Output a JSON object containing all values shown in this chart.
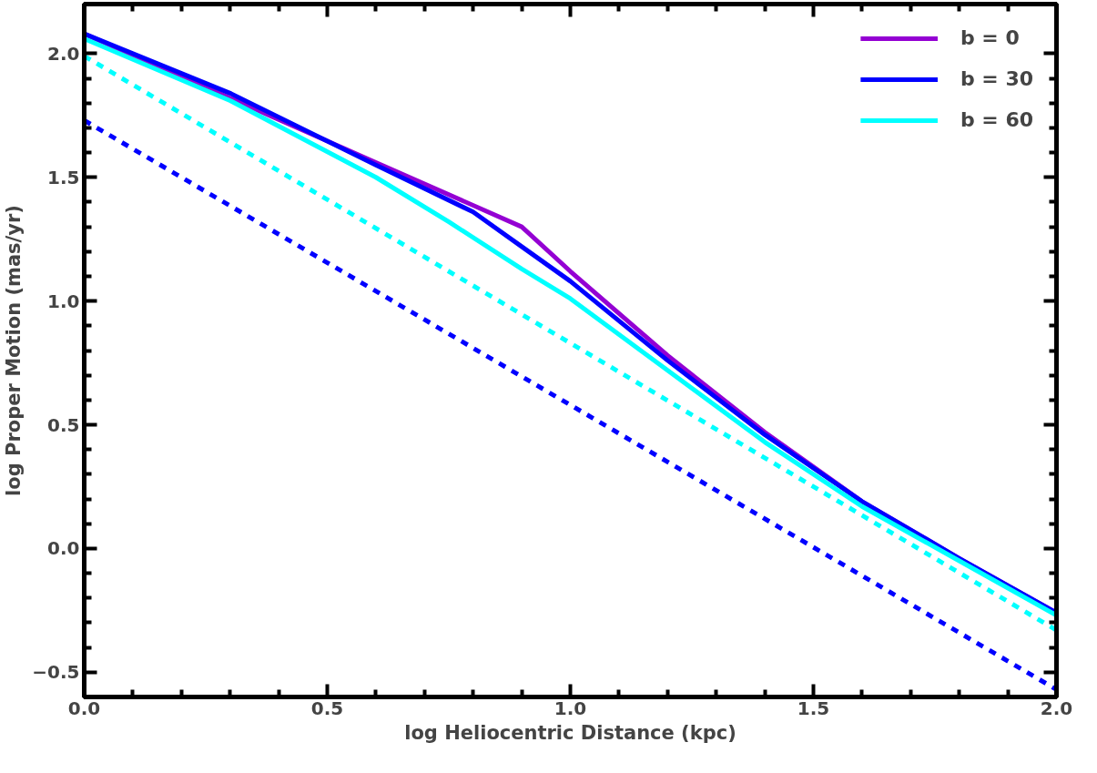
{
  "chart_data": {
    "type": "line",
    "xlabel": "log Heliocentric Distance (kpc)",
    "ylabel": "log Proper Motion (mas/yr)",
    "xlim": [
      0,
      2
    ],
    "ylim": [
      -0.6,
      2.2
    ],
    "xticks": [
      {
        "value": 0,
        "label": "0.0"
      },
      0.5,
      {
        "value": 1,
        "label": "1.0"
      },
      1.5,
      {
        "value": 2,
        "label": "2.0"
      }
    ],
    "yticks": [
      {
        "value": -0.5,
        "label": "−0.5"
      },
      {
        "value": 0,
        "label": "0.0"
      },
      0.5,
      {
        "value": 1,
        "label": "1.0"
      },
      1.5,
      {
        "value": 2,
        "label": "2.0"
      }
    ],
    "grid": false,
    "legend": "top right",
    "series": [
      {
        "name": "b = 0",
        "color": "#9400d3",
        "line_style": "solid",
        "x": [
          0,
          0.3,
          0.6,
          0.9,
          1.0,
          1.2,
          1.4,
          1.6,
          1.8,
          2.0
        ],
        "values": [
          2.08,
          1.82,
          1.56,
          1.3,
          1.12,
          0.78,
          0.47,
          0.19,
          -0.04,
          -0.26
        ]
      },
      {
        "name": "b = 30",
        "color": "#0000ff",
        "line_style": "solid",
        "x": [
          0,
          0.3,
          0.6,
          0.8,
          0.9,
          1.0,
          1.2,
          1.4,
          1.6,
          1.8,
          2.0
        ],
        "values": [
          2.08,
          1.84,
          1.55,
          1.36,
          1.22,
          1.08,
          0.76,
          0.46,
          0.19,
          -0.04,
          -0.26
        ]
      },
      {
        "name": "b = 60",
        "color": "#00ffff",
        "line_style": "solid",
        "x": [
          0,
          0.3,
          0.6,
          0.75,
          0.9,
          1.0,
          1.2,
          1.4,
          1.6,
          1.8,
          2.0
        ],
        "values": [
          2.06,
          1.81,
          1.5,
          1.32,
          1.13,
          1.01,
          0.72,
          0.43,
          0.17,
          -0.05,
          -0.27
        ]
      },
      {
        "color": "#00ffff",
        "line_style": "dashed",
        "x": [
          0,
          2.0
        ],
        "values": [
          1.99,
          -0.33
        ]
      },
      {
        "color": "#0000ff",
        "line_style": "dashed",
        "x": [
          0,
          2.0
        ],
        "values": [
          1.73,
          -0.57
        ]
      }
    ]
  }
}
